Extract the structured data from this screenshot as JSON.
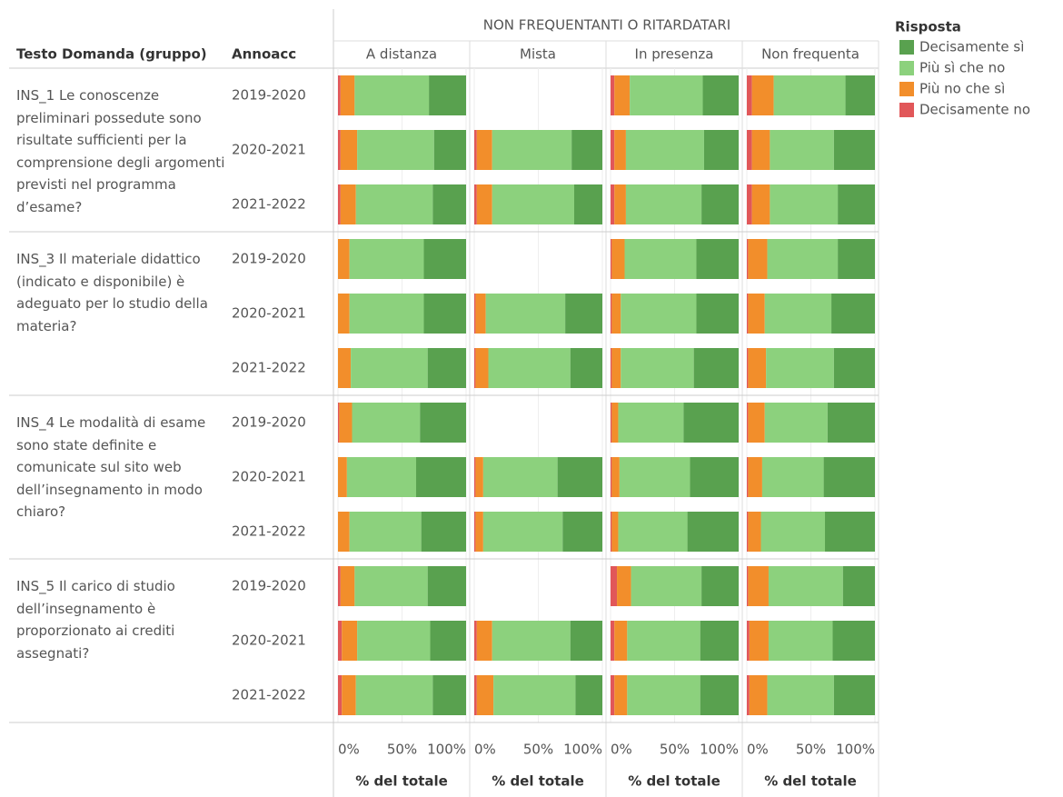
{
  "chart_data": {
    "type": "bar",
    "stacked": true,
    "orientation": "horizontal",
    "header": "NON FREQUENTANTI O RITARDATARI",
    "row_headers": [
      "Testo Domanda (gruppo)",
      "Annoacc"
    ],
    "columns": [
      "A distanza",
      "Mista",
      "In presenza",
      "Non frequenta"
    ],
    "questions": [
      "INS_1 Le conoscenze preliminari possedute sono risultate sufficienti per la comprensione degli argomenti previsti nel programma d’esame?",
      "INS_3 Il materiale didattico (indicato e disponibile) è adeguato per lo studio della materia?",
      "INS_4 Le modalità di esame sono state definite e comunicate sul sito web dell’insegnamento in modo chiaro?",
      "INS_5 Il carico di studio dell’insegnamento è proporzionato ai crediti assegnati?"
    ],
    "years": [
      "2019-2020",
      "2020-2021",
      "2021-2022"
    ],
    "legend_title": "Risposta",
    "series": [
      {
        "name": "Decisamente no",
        "color": "#e15759",
        "values": [
          [
            2,
            2,
            2,
            0,
            0,
            0,
            1,
            0,
            0,
            2,
            3,
            3
          ],
          [
            null,
            2,
            2,
            null,
            1,
            1,
            null,
            1,
            1,
            null,
            2,
            2
          ],
          [
            3,
            3,
            3,
            1,
            1,
            1,
            1,
            1,
            1,
            5,
            3,
            3
          ],
          [
            4,
            4,
            4,
            1,
            1,
            1,
            1,
            1,
            1,
            1,
            2,
            2
          ]
        ]
      },
      {
        "name": "Più no che sì",
        "color": "#f28e2b",
        "values": [
          [
            11,
            13,
            12,
            9,
            9,
            10,
            10,
            7,
            9,
            11,
            12,
            11
          ],
          [
            null,
            12,
            12,
            null,
            8,
            10,
            null,
            6,
            6,
            null,
            12,
            13
          ],
          [
            12,
            9,
            9,
            10,
            7,
            7,
            5,
            6,
            5,
            11,
            10,
            10
          ],
          [
            17,
            14,
            14,
            15,
            13,
            14,
            13,
            11,
            10,
            16,
            15,
            14
          ]
        ]
      },
      {
        "name": "Più sì che no",
        "color": "#8cd17d",
        "values": [
          [
            58,
            60,
            60,
            58,
            58,
            60,
            53,
            54,
            56,
            57,
            57,
            60
          ],
          [
            null,
            62,
            64,
            null,
            62,
            64,
            null,
            58,
            62,
            null,
            61,
            64
          ],
          [
            57,
            61,
            59,
            56,
            59,
            57,
            51,
            55,
            54,
            55,
            57,
            57
          ],
          [
            56,
            50,
            53,
            55,
            52,
            53,
            49,
            48,
            50,
            58,
            50,
            52
          ]
        ]
      },
      {
        "name": "Decisamente sì",
        "color": "#59a14f",
        "values": [
          [
            29,
            25,
            26,
            33,
            33,
            30,
            36,
            39,
            35,
            30,
            28,
            26
          ],
          [
            null,
            24,
            22,
            null,
            29,
            25,
            null,
            35,
            31,
            null,
            25,
            21
          ],
          [
            28,
            27,
            29,
            33,
            33,
            35,
            43,
            38,
            40,
            29,
            30,
            30
          ],
          [
            23,
            32,
            29,
            29,
            34,
            32,
            37,
            40,
            39,
            25,
            33,
            32
          ]
        ]
      }
    ],
    "xlim": [
      0,
      100
    ],
    "xticks": [
      {
        "value": 0,
        "label": "0%"
      },
      {
        "value": 50,
        "label": "50%"
      },
      {
        "value": 100,
        "label": "100%"
      }
    ],
    "xlabel": "% del totale",
    "grid": true
  }
}
